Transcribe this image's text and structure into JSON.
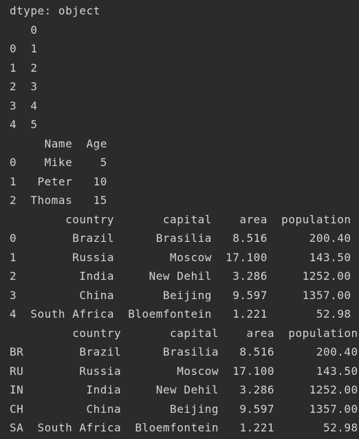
{
  "console": {
    "lines": [
      "dtype: object",
      "   0",
      "0  1",
      "1  2",
      "2  3",
      "3  4",
      "4  5",
      "     Name  Age",
      "0    Mike    5",
      "1   Peter   10",
      "2  Thomas   15",
      "        country       capital    area  population",
      "0        Brazil      Brasilia   8.516      200.40",
      "1        Russia        Moscow  17.100      143.50",
      "2         India     New Dehil   3.286     1252.00",
      "3         China       Beijing   9.597     1357.00",
      "4  South Africa  Bloemfontein   1.221       52.98",
      "         country       capital    area  population",
      "BR        Brazil      Brasilia   8.516      200.40",
      "RU        Russia        Moscow  17.100      143.50",
      "IN         India     New Dehil   3.286     1252.00",
      "CH         China       Beijing   9.597     1357.00",
      "SA  South Africa  Bloemfontein   1.221       52.98"
    ]
  }
}
